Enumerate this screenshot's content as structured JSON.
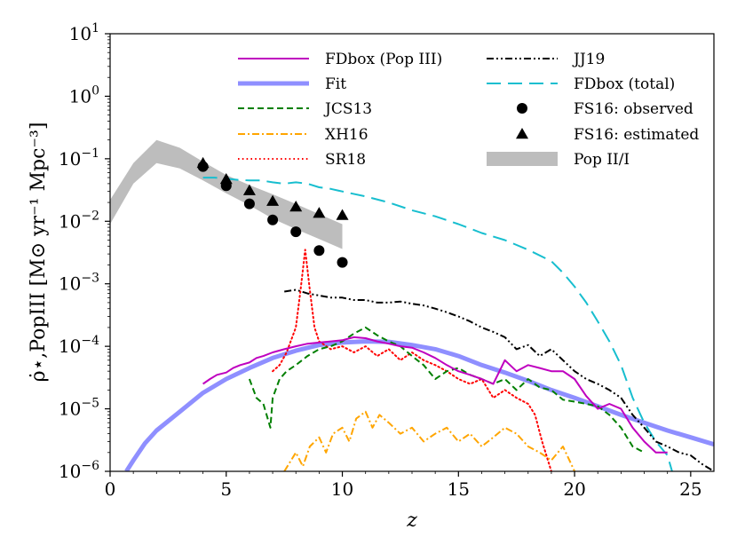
{
  "chart_data": {
    "type": "line",
    "title": "",
    "xlabel": "z",
    "ylabel": "ρ̇⋆,PopIII [M⊙ yr⁻¹ Mpc⁻³]",
    "xlim": [
      0,
      26
    ],
    "ylim_log10": [
      -6,
      1
    ],
    "x_ticks": [
      0,
      5,
      10,
      15,
      20,
      25
    ],
    "x_tick_labels": [
      "0",
      "5",
      "10",
      "15",
      "20",
      "25"
    ],
    "y_ticks_log10": [
      -6,
      -5,
      -4,
      -3,
      -2,
      -1,
      0,
      1
    ],
    "y_tick_labels": [
      "10",
      "10",
      "10",
      "10",
      "10",
      "10",
      "10",
      "10"
    ],
    "y_tick_exponents": [
      "−6",
      "−5",
      "−4",
      "−3",
      "−2",
      "−1",
      "0",
      "1"
    ],
    "legend_position": "top-center",
    "band": {
      "name": "Pop II/I",
      "color": "#bdbdbd",
      "x": [
        0,
        1,
        2,
        3,
        4,
        5,
        6,
        7,
        8,
        9,
        10
      ],
      "upper": [
        0.022,
        0.085,
        0.2,
        0.15,
        0.09,
        0.055,
        0.038,
        0.027,
        0.019,
        0.013,
        0.009
      ],
      "lower": [
        0.009,
        0.04,
        0.085,
        0.07,
        0.045,
        0.028,
        0.018,
        0.011,
        0.0075,
        0.0052,
        0.0036
      ]
    },
    "series": [
      {
        "name": "FDbox (Pop III)",
        "color": "#bf00bf",
        "style": "solid",
        "width": 2,
        "x": [
          4,
          4.3,
          4.6,
          5,
          5.3,
          5.6,
          6,
          6.3,
          6.6,
          7,
          7.5,
          8,
          8.5,
          9,
          9.5,
          10,
          10.5,
          11,
          11.5,
          12,
          12.5,
          13,
          13.5,
          14,
          14.5,
          15,
          15.5,
          16,
          16.5,
          17,
          17.5,
          18,
          18.5,
          19,
          19.5,
          20,
          20.5,
          21,
          21.5,
          22,
          22.5,
          23,
          23.5,
          24
        ],
        "y": [
          2.5e-05,
          3e-05,
          3.5e-05,
          3.8e-05,
          4.5e-05,
          5e-05,
          5.5e-05,
          6.5e-05,
          7e-05,
          8e-05,
          9e-05,
          0.0001,
          0.00011,
          0.000115,
          0.00012,
          0.000125,
          0.00014,
          0.000135,
          0.00012,
          0.00011,
          0.0001,
          9.5e-05,
          8e-05,
          6.5e-05,
          5e-05,
          4e-05,
          3.5e-05,
          3e-05,
          2.5e-05,
          6e-05,
          4e-05,
          5e-05,
          4.5e-05,
          4e-05,
          4e-05,
          3e-05,
          1.6e-05,
          1e-05,
          1.2e-05,
          1e-05,
          5e-06,
          3e-06,
          2e-06,
          2e-06
        ]
      },
      {
        "name": "Fit",
        "color": "#7b7bff",
        "style": "solid",
        "width": 5,
        "opacity": 0.85,
        "x": [
          0.7,
          1,
          1.5,
          2,
          3,
          4,
          5,
          6,
          7,
          8,
          9,
          10,
          11,
          12,
          13,
          14,
          15,
          16,
          17,
          18,
          19,
          20,
          21,
          22,
          23,
          24,
          25,
          26
        ],
        "y": [
          1e-06,
          1.5e-06,
          2.8e-06,
          4.5e-06,
          9e-06,
          1.8e-05,
          3e-05,
          4.5e-05,
          6.5e-05,
          8.5e-05,
          0.000105,
          0.000115,
          0.00012,
          0.000118,
          0.000105,
          9e-05,
          7e-05,
          5e-05,
          3.8e-05,
          2.8e-05,
          2e-05,
          1.5e-05,
          1.1e-05,
          8e-06,
          6e-06,
          4.5e-06,
          3.5e-06,
          2.7e-06
        ]
      },
      {
        "name": "JCS13",
        "color": "#007f00",
        "style": "dashed",
        "width": 2,
        "x": [
          6,
          6.3,
          6.6,
          6.9,
          7,
          7.3,
          7.6,
          8,
          8.5,
          9,
          9.5,
          10,
          10.5,
          11,
          11.5,
          12,
          12.5,
          13,
          13.5,
          14,
          14.5,
          15,
          15.5,
          16,
          16.5,
          17,
          17.5,
          18,
          18.5,
          19,
          19.5,
          20,
          20.5,
          21,
          21.5,
          22,
          22.5,
          23
        ],
        "y": [
          3e-05,
          1.5e-05,
          1.2e-05,
          5e-06,
          1.5e-05,
          3e-05,
          4e-05,
          5e-05,
          7e-05,
          9e-05,
          0.0001,
          0.00012,
          0.00016,
          0.0002,
          0.00015,
          0.00012,
          0.0001,
          7e-05,
          5e-05,
          3e-05,
          4e-05,
          4.5e-05,
          3.5e-05,
          3e-05,
          2.5e-05,
          3e-05,
          2e-05,
          3e-05,
          2.2e-05,
          2e-05,
          1.4e-05,
          1.3e-05,
          1.2e-05,
          1.1e-05,
          8e-06,
          5e-06,
          2.5e-06,
          2e-06
        ]
      },
      {
        "name": "XH16",
        "color": "#ffa500",
        "style": "dashdot",
        "width": 2,
        "x": [
          7.5,
          8,
          8.3,
          8.6,
          9,
          9.3,
          9.6,
          10,
          10.3,
          10.6,
          11,
          11.3,
          11.6,
          12,
          12.5,
          13,
          13.5,
          14,
          14.5,
          15,
          15.5,
          16,
          16.5,
          17,
          17.5,
          18,
          18.5,
          19,
          19.5,
          20
        ],
        "y": [
          1e-06,
          2e-06,
          1.2e-06,
          2.5e-06,
          3.5e-06,
          2e-06,
          4e-06,
          5e-06,
          3e-06,
          7e-06,
          9e-06,
          5e-06,
          8e-06,
          6e-06,
          4e-06,
          5e-06,
          3e-06,
          4e-06,
          5e-06,
          3e-06,
          4e-06,
          2.5e-06,
          3.5e-06,
          5e-06,
          4e-06,
          2.5e-06,
          2e-06,
          1.5e-06,
          2.5e-06,
          1e-06
        ]
      },
      {
        "name": "SR18",
        "color": "#ff0000",
        "style": "dotted",
        "width": 2,
        "x": [
          7,
          7.3,
          7.6,
          8,
          8.2,
          8.4,
          8.6,
          8.8,
          9,
          9.5,
          10,
          10.5,
          11,
          11.5,
          12,
          12.5,
          13,
          13.5,
          14,
          14.5,
          15,
          15.5,
          16,
          16.5,
          17,
          17.5,
          18,
          18.3,
          18.6,
          19
        ],
        "y": [
          4e-05,
          5e-05,
          8e-05,
          0.0002,
          0.0008,
          0.0035,
          0.0008,
          0.0002,
          0.00012,
          9e-05,
          0.0001,
          8e-05,
          0.0001,
          7e-05,
          9e-05,
          6e-05,
          8e-05,
          6e-05,
          5e-05,
          4e-05,
          3e-05,
          2.5e-05,
          3e-05,
          1.5e-05,
          2e-05,
          1.5e-05,
          1.2e-05,
          8e-06,
          3e-06,
          1e-06
        ]
      },
      {
        "name": "JJ19",
        "color": "#000000",
        "style": "dashdotdot",
        "width": 2,
        "x": [
          7.5,
          8,
          8.5,
          9,
          9.5,
          10,
          10.5,
          11,
          11.5,
          12,
          12.5,
          13,
          13.5,
          14,
          14.5,
          15,
          15.5,
          16,
          16.5,
          17,
          17.5,
          18,
          18.5,
          19,
          19.5,
          20,
          20.5,
          21,
          21.5,
          22,
          22.5,
          23,
          23.5,
          24,
          24.5,
          25,
          25.5,
          26
        ],
        "y": [
          0.00075,
          0.0008,
          0.0007,
          0.00065,
          0.0006,
          0.0006,
          0.00055,
          0.00055,
          0.0005,
          0.0005,
          0.00052,
          0.00048,
          0.00045,
          0.0004,
          0.00035,
          0.0003,
          0.00025,
          0.0002,
          0.00017,
          0.00014,
          9e-05,
          0.000105,
          7e-05,
          9e-05,
          6e-05,
          4e-05,
          3e-05,
          2.5e-05,
          2e-05,
          1.5e-05,
          8e-06,
          5e-06,
          3e-06,
          2.5e-06,
          2e-06,
          1.8e-06,
          1.3e-06,
          1e-06
        ]
      },
      {
        "name": "FDbox (total)",
        "color": "#17becf",
        "style": "longdash",
        "width": 2,
        "x": [
          4,
          4.5,
          5,
          5.5,
          6,
          6.5,
          7,
          7.5,
          8,
          8.5,
          9,
          9.5,
          10,
          11,
          12,
          13,
          14,
          15,
          16,
          17,
          18,
          19,
          19.5,
          20,
          20.5,
          21,
          21.5,
          22,
          22.5,
          23,
          23.5,
          24,
          24.2
        ],
        "y": [
          0.05,
          0.05,
          0.048,
          0.046,
          0.045,
          0.045,
          0.042,
          0.04,
          0.042,
          0.04,
          0.035,
          0.033,
          0.03,
          0.025,
          0.02,
          0.015,
          0.012,
          0.009,
          0.0065,
          0.005,
          0.0035,
          0.0023,
          0.0015,
          0.0009,
          0.0005,
          0.00025,
          0.00012,
          5e-05,
          1.5e-05,
          6e-06,
          3e-06,
          1.8e-06,
          1e-06
        ]
      }
    ],
    "scatter": [
      {
        "name": "FS16: observed",
        "marker": "circle",
        "color": "#000000",
        "x": [
          4,
          5,
          6,
          7,
          8,
          9,
          10
        ],
        "y": [
          0.075,
          0.037,
          0.019,
          0.0105,
          0.0068,
          0.0034,
          0.0022
        ]
      },
      {
        "name": "FS16: estimated",
        "marker": "triangle",
        "color": "#000000",
        "x": [
          4,
          5,
          6,
          7,
          8,
          9,
          10
        ],
        "y": [
          0.085,
          0.047,
          0.031,
          0.021,
          0.017,
          0.0135,
          0.0125
        ]
      }
    ],
    "legend": [
      {
        "label": "FDbox (Pop III)",
        "kind": "line",
        "ref": "FDbox (Pop III)"
      },
      {
        "label": "Fit",
        "kind": "line",
        "ref": "Fit"
      },
      {
        "label": "JCS13",
        "kind": "line",
        "ref": "JCS13"
      },
      {
        "label": "XH16",
        "kind": "line",
        "ref": "XH16"
      },
      {
        "label": "SR18",
        "kind": "line",
        "ref": "SR18"
      },
      {
        "label": "JJ19",
        "kind": "line",
        "ref": "JJ19"
      },
      {
        "label": "FDbox (total)",
        "kind": "line",
        "ref": "FDbox (total)"
      },
      {
        "label": "FS16: observed",
        "kind": "circle",
        "ref": "FS16: observed"
      },
      {
        "label": "FS16: estimated",
        "kind": "triangle",
        "ref": "FS16: estimated"
      },
      {
        "label": "Pop II/I",
        "kind": "band",
        "ref": "Pop II/I"
      }
    ]
  }
}
